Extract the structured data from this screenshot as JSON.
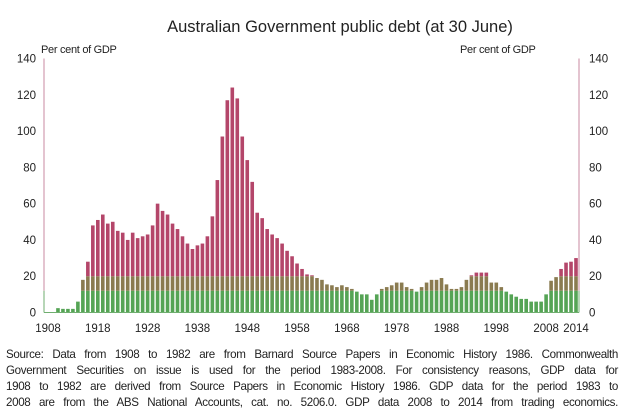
{
  "chart_data": {
    "type": "bar",
    "title": "Australian Government public debt (at 30 June)",
    "ylabel_left": "Per cent of GDP",
    "ylabel_right": "Per cent of GDP",
    "ylim": [
      0,
      140
    ],
    "yticks": [
      0,
      20,
      40,
      60,
      80,
      100,
      120,
      140
    ],
    "xtick_labels": [
      "1908",
      "1918",
      "1928",
      "1938",
      "1948",
      "1958",
      "1968",
      "1978",
      "1988",
      "1998",
      "2008",
      "2014"
    ],
    "x_start": 1908,
    "x_end": 2014,
    "grid": false,
    "color_bands": [
      {
        "from": 0,
        "to": 12,
        "color": "#55a455"
      },
      {
        "from": 12,
        "to": 20,
        "color": "#8a7b50"
      },
      {
        "from": 20,
        "to": 140,
        "color": "#b4466a"
      }
    ],
    "values": [
      0,
      0,
      2.4,
      2,
      2,
      2,
      6,
      18,
      28,
      48,
      51,
      54,
      49,
      50,
      45,
      44,
      40,
      44,
      41,
      42,
      43,
      48,
      60,
      56,
      54,
      49,
      46,
      42,
      38,
      35,
      37,
      38,
      42,
      53,
      73,
      97,
      117,
      124,
      118,
      97,
      84,
      72,
      55,
      52,
      46,
      43,
      41,
      38,
      34,
      31,
      27,
      24,
      21,
      20.5,
      19,
      18,
      15.5,
      15,
      14,
      15,
      14,
      13,
      11.5,
      10,
      10,
      7,
      10,
      13,
      14,
      15,
      16.5,
      16.5,
      14,
      13,
      11.5,
      14,
      16.5,
      18,
      18,
      19,
      15.5,
      13,
      13,
      14,
      18,
      20.5,
      22,
      22,
      22,
      16.5,
      16.5,
      14,
      11.5,
      10,
      8.7,
      7.5,
      7.5,
      6,
      6,
      6,
      10,
      17.5,
      19.5,
      24,
      27.5,
      28,
      30
    ]
  },
  "source_lines": [
    "Source: Data from 1908 to 1982 are from Barnard Source Papers in Economic History 1986. Commonwealth",
    "Government Securities on issue is used for the period 1983-2008. For consistency reasons, GDP data for",
    "1908 to 1982 are derived from Source Papers in Economic History 1986. GDP data for the period 1983 to",
    "2008 are from the ABS National Accounts, cat. no. 5206.0. GDP data 2008 to 2014 from trading economics."
  ]
}
